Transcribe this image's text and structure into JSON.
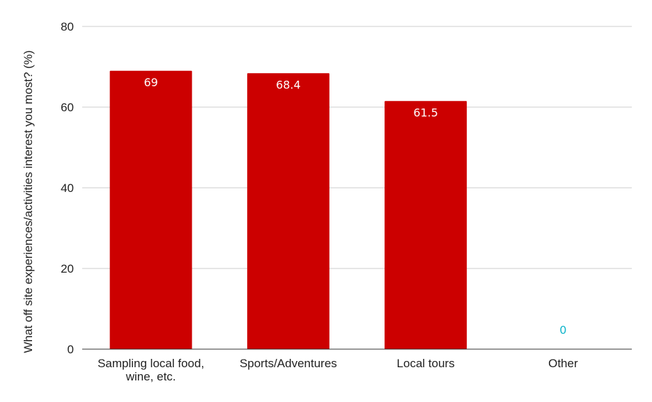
{
  "chart_data": {
    "type": "bar",
    "title": "",
    "xlabel": "",
    "ylabel": "What off site experiences/activities interest you most? (%)",
    "categories": [
      [
        "Sampling local food,",
        "wine, etc."
      ],
      [
        "Sports/Adventures"
      ],
      [
        "Local tours"
      ],
      [
        "Other"
      ]
    ],
    "values": [
      69,
      68.4,
      61.5,
      0
    ],
    "value_labels": [
      "69",
      "68.4",
      "61.5",
      "0"
    ],
    "ylim": [
      0,
      80
    ],
    "yticks": [
      0,
      20,
      40,
      60,
      80
    ],
    "grid": true,
    "legend": "none",
    "colors": {
      "bar": "#cc0000",
      "label_inside": "#ffffff",
      "label_zero": "#12b5cb",
      "grid": "#cccccc",
      "axis": "#333333"
    }
  }
}
